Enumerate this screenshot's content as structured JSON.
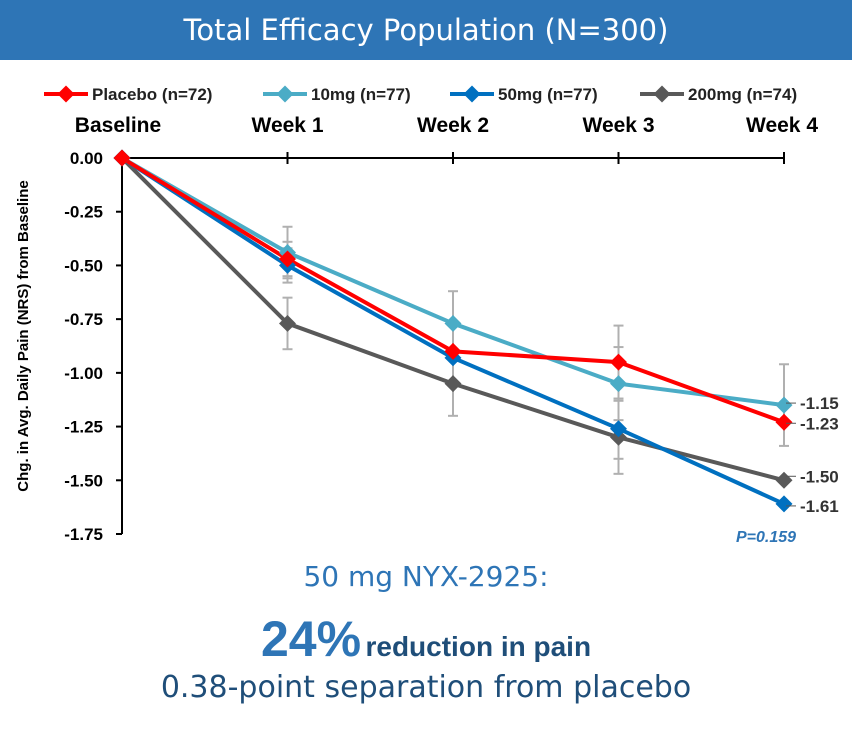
{
  "header": {
    "title": "Total Efficacy Population (N=300)"
  },
  "chart_data": {
    "type": "line",
    "title": "Total Efficacy Population (N=300)",
    "categories": [
      "Baseline",
      "Week 1",
      "Week 2",
      "Week 3",
      "Week 4"
    ],
    "xlabel": "",
    "ylabel": "Chg. in Avg. Daily Pain (NRS) from Baseline",
    "ylim": [
      -1.75,
      0
    ],
    "yticks": [
      "0.00",
      "-0.25",
      "-0.50",
      "-0.75",
      "-1.00",
      "-1.25",
      "-1.50",
      "-1.75"
    ],
    "ytick_values": [
      0,
      -0.25,
      -0.5,
      -0.75,
      -1.0,
      -1.25,
      -1.5,
      -1.75
    ],
    "legend_position": "top",
    "series": [
      {
        "name": "Placebo (n=72)",
        "color": "#ff0000",
        "values": [
          0,
          -0.47,
          -0.9,
          -0.95,
          -1.23
        ],
        "err_low": [
          0,
          -0.55,
          -0.9,
          -1.12,
          -1.23
        ],
        "err_high": [
          0,
          -0.39,
          -0.9,
          -0.78,
          -1.23
        ],
        "end_label": "-1.23"
      },
      {
        "name": "10mg (n=77)",
        "color": "#4bacc6",
        "values": [
          0,
          -0.44,
          -0.77,
          -1.05,
          -1.15
        ],
        "err_low": [
          0,
          -0.56,
          -0.92,
          -1.22,
          -1.34
        ],
        "err_high": [
          0,
          -0.32,
          -0.62,
          -0.88,
          -0.96
        ],
        "end_label": "-1.15"
      },
      {
        "name": "50mg (n=77)",
        "color": "#0070c0",
        "values": [
          0,
          -0.5,
          -0.93,
          -1.26,
          -1.61
        ],
        "err_low": [
          0,
          -0.58,
          -0.93,
          -1.4,
          -1.61
        ],
        "err_high": [
          0,
          -0.42,
          -0.93,
          -1.12,
          -1.61
        ],
        "end_label": "-1.61"
      },
      {
        "name": "200mg (n=74)",
        "color": "#595959",
        "values": [
          0,
          -0.77,
          -1.05,
          -1.3,
          -1.5
        ],
        "err_low": [
          0,
          -0.89,
          -1.2,
          -1.47,
          -1.5
        ],
        "err_high": [
          0,
          -0.65,
          -0.9,
          -1.13,
          -1.5
        ],
        "end_label": "-1.50"
      }
    ],
    "annotations": [
      {
        "text": "P=0.159",
        "series": "50mg (n=77)"
      }
    ]
  },
  "summary": {
    "line1": "50 mg NYX-2925:",
    "percent": "24%",
    "line2_rest": "reduction in pain",
    "line3": "0.38-point separation from placebo"
  }
}
